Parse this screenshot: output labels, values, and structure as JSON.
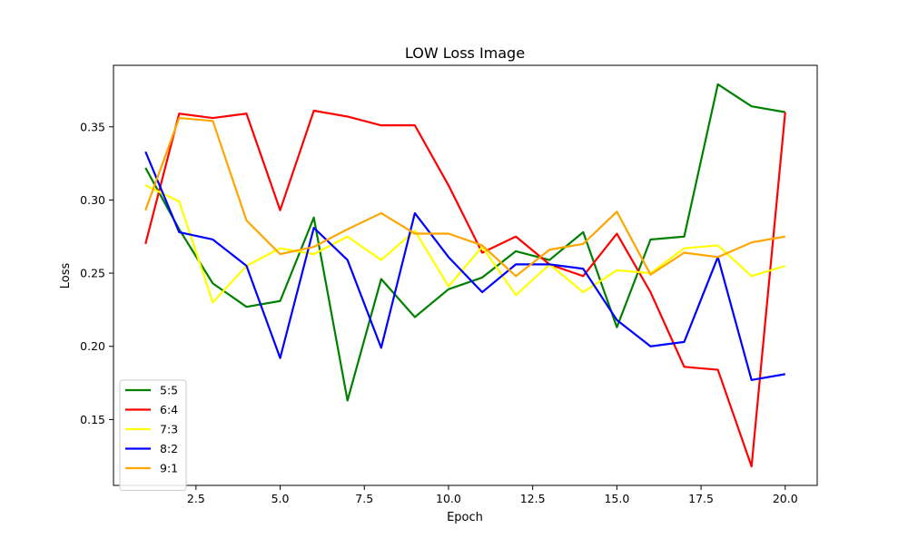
{
  "chart_data": {
    "type": "line",
    "title": "LOW Loss Image",
    "xlabel": "Epoch",
    "ylabel": "Loss",
    "xlim": [
      0.05,
      20.95
    ],
    "ylim": [
      0.105,
      0.392
    ],
    "xticks": [
      2.5,
      5.0,
      7.5,
      10.0,
      12.5,
      15.0,
      17.5,
      20.0
    ],
    "xtick_labels": [
      "2.5",
      "5.0",
      "7.5",
      "10.0",
      "12.5",
      "15.0",
      "17.5",
      "20.0"
    ],
    "yticks": [
      0.15,
      0.2,
      0.25,
      0.3,
      0.35
    ],
    "ytick_labels": [
      "0.15",
      "0.20",
      "0.25",
      "0.30",
      "0.35"
    ],
    "grid": false,
    "legend_position": "lower-left",
    "x": [
      1,
      2,
      3,
      4,
      5,
      6,
      7,
      8,
      9,
      10,
      11,
      12,
      13,
      14,
      15,
      16,
      17,
      18,
      19,
      20
    ],
    "series": [
      {
        "name": "5:5",
        "color": "#008000",
        "values": [
          0.322,
          0.28,
          0.243,
          0.227,
          0.231,
          0.288,
          0.163,
          0.246,
          0.22,
          0.239,
          0.247,
          0.265,
          0.259,
          0.278,
          0.213,
          0.273,
          0.275,
          0.379,
          0.364,
          0.36
        ]
      },
      {
        "name": "6:4",
        "color": "#ff0000",
        "values": [
          0.27,
          0.359,
          0.356,
          0.359,
          0.293,
          0.361,
          0.357,
          0.351,
          0.351,
          0.31,
          0.264,
          0.275,
          0.256,
          0.248,
          0.277,
          0.237,
          0.186,
          0.184,
          0.118,
          0.36
        ]
      },
      {
        "name": "7:3",
        "color": "#ffff00",
        "values": [
          0.31,
          0.299,
          0.23,
          0.255,
          0.267,
          0.263,
          0.275,
          0.259,
          0.279,
          0.241,
          0.268,
          0.235,
          0.256,
          0.237,
          0.252,
          0.25,
          0.267,
          0.269,
          0.248,
          0.255
        ]
      },
      {
        "name": "8:2",
        "color": "#0000ff",
        "values": [
          0.333,
          0.278,
          0.273,
          0.255,
          0.192,
          0.281,
          0.259,
          0.199,
          0.291,
          0.261,
          0.237,
          0.256,
          0.256,
          0.253,
          0.218,
          0.2,
          0.203,
          0.261,
          0.177,
          0.181
        ]
      },
      {
        "name": "9:1",
        "color": "#ffa500",
        "values": [
          0.293,
          0.356,
          0.354,
          0.286,
          0.263,
          0.268,
          0.28,
          0.291,
          0.277,
          0.277,
          0.269,
          0.248,
          0.266,
          0.27,
          0.292,
          0.249,
          0.264,
          0.261,
          0.271,
          0.275
        ]
      }
    ]
  }
}
